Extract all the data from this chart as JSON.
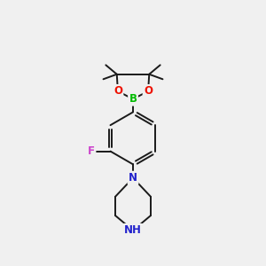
{
  "bg_color": "#f0f0f0",
  "bond_color": "#1a1a1a",
  "bond_width": 1.4,
  "atom_colors": {
    "B": "#00bb00",
    "O": "#ee1100",
    "F": "#cc44cc",
    "N": "#2222cc",
    "C": "#1a1a1a"
  }
}
